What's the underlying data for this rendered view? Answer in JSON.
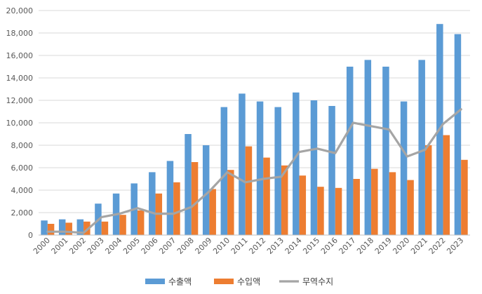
{
  "chart_data": {
    "type": "bar",
    "categories": [
      "2000",
      "2001",
      "2002",
      "2003",
      "2004",
      "2005",
      "2006",
      "2007",
      "2008",
      "2009",
      "2010",
      "2011",
      "2012",
      "2013",
      "2014",
      "2015",
      "2016",
      "2017",
      "2018",
      "2019",
      "2020",
      "2021",
      "2022",
      "2023"
    ],
    "series": [
      {
        "name": "수출액",
        "type": "bar",
        "color": "#5B9BD5",
        "values": [
          1300,
          1400,
          1400,
          2800,
          3700,
          4600,
          5600,
          6600,
          9000,
          8000,
          11400,
          12600,
          11900,
          11400,
          12700,
          12000,
          11500,
          15000,
          15600,
          15000,
          11900,
          15600,
          18800,
          17900
        ]
      },
      {
        "name": "수입액",
        "type": "bar",
        "color": "#ED7D31",
        "values": [
          1000,
          1100,
          1200,
          1200,
          1800,
          2200,
          3700,
          4700,
          6500,
          4100,
          5800,
          7900,
          6900,
          6200,
          5300,
          4300,
          4200,
          5000,
          5900,
          5600,
          4900,
          8000,
          8900,
          6700
        ]
      },
      {
        "name": "무역수지",
        "type": "line",
        "color": "#A5A5A5",
        "values": [
          300,
          300,
          200,
          1600,
          1900,
          2400,
          1900,
          1900,
          2500,
          3900,
          5600,
          4700,
          5000,
          5200,
          7400,
          7700,
          7300,
          10000,
          9700,
          9400,
          7000,
          7600,
          9900,
          11200
        ]
      }
    ],
    "y_ticks": [
      "0",
      "2,000",
      "4,000",
      "6,000",
      "8,000",
      "10,000",
      "12,000",
      "14,000",
      "16,000",
      "18,000",
      "20,000"
    ],
    "ylim": [
      0,
      20000
    ],
    "grid": true,
    "legend_position": "bottom"
  }
}
